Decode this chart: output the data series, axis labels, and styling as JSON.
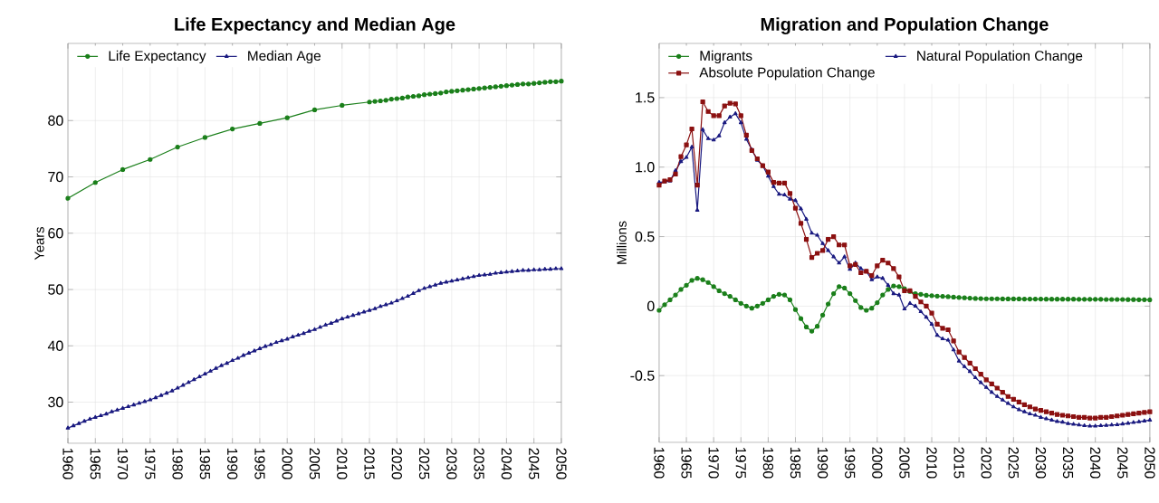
{
  "chart_data": [
    {
      "type": "line",
      "title": "Life Expectancy and Median Age",
      "ylabel": "Years",
      "x": [
        1960,
        1961,
        1962,
        1963,
        1964,
        1965,
        1966,
        1967,
        1968,
        1969,
        1970,
        1971,
        1972,
        1973,
        1974,
        1975,
        1976,
        1977,
        1978,
        1979,
        1980,
        1981,
        1982,
        1983,
        1984,
        1985,
        1986,
        1987,
        1988,
        1989,
        1990,
        1991,
        1992,
        1993,
        1994,
        1995,
        1996,
        1997,
        1998,
        1999,
        2000,
        2001,
        2002,
        2003,
        2004,
        2005,
        2006,
        2007,
        2008,
        2009,
        2010,
        2011,
        2012,
        2013,
        2014,
        2015,
        2016,
        2017,
        2018,
        2019,
        2020,
        2021,
        2022,
        2023,
        2024,
        2025,
        2026,
        2027,
        2028,
        2029,
        2030,
        2031,
        2032,
        2033,
        2034,
        2035,
        2036,
        2037,
        2038,
        2039,
        2040,
        2041,
        2042,
        2043,
        2044,
        2045,
        2046,
        2047,
        2048,
        2049,
        2050
      ],
      "xlim": [
        1960,
        2050
      ],
      "xticks": [
        1960,
        1965,
        1970,
        1975,
        1980,
        1985,
        1990,
        1995,
        2000,
        2005,
        2010,
        2015,
        2020,
        2025,
        2030,
        2035,
        2040,
        2045,
        2050
      ],
      "ylim": [
        22.7,
        93.7
      ],
      "yticks": [
        30,
        40,
        50,
        60,
        70,
        80
      ],
      "grid": true,
      "legend": "top left",
      "series": [
        {
          "name": "Life Expectancy",
          "color": "#1a7f1a",
          "marker": "circle",
          "x": [
            1960,
            1965,
            1970,
            1975,
            1980,
            1985,
            1990,
            1995,
            2000,
            2005,
            2010,
            2015,
            2016,
            2017,
            2018,
            2019,
            2020,
            2021,
            2022,
            2023,
            2024,
            2025,
            2026,
            2027,
            2028,
            2029,
            2030,
            2031,
            2032,
            2033,
            2034,
            2035,
            2036,
            2037,
            2038,
            2039,
            2040,
            2041,
            2042,
            2043,
            2044,
            2045,
            2046,
            2047,
            2048,
            2049,
            2050
          ],
          "values": [
            66.2,
            69.0,
            71.3,
            73.1,
            75.3,
            77.0,
            78.5,
            79.5,
            80.5,
            81.9,
            82.7,
            83.3,
            83.4,
            83.5,
            83.6,
            83.8,
            83.9,
            84.0,
            84.2,
            84.3,
            84.4,
            84.6,
            84.7,
            84.8,
            84.9,
            85.1,
            85.2,
            85.3,
            85.4,
            85.5,
            85.6,
            85.7,
            85.8,
            85.9,
            86.0,
            86.1,
            86.2,
            86.3,
            86.4,
            86.5,
            86.5,
            86.6,
            86.7,
            86.8,
            86.9,
            86.9,
            87.0
          ]
        },
        {
          "name": "Median Age",
          "color": "#1a1a80",
          "marker": "triangle",
          "values": [
            25.4,
            25.8,
            26.2,
            26.6,
            27.0,
            27.3,
            27.6,
            27.9,
            28.3,
            28.6,
            28.9,
            29.2,
            29.5,
            29.8,
            30.1,
            30.4,
            30.8,
            31.2,
            31.6,
            32.0,
            32.5,
            33.0,
            33.5,
            34.0,
            34.5,
            35.0,
            35.5,
            36.0,
            36.5,
            36.9,
            37.4,
            37.8,
            38.3,
            38.7,
            39.1,
            39.5,
            39.9,
            40.2,
            40.6,
            40.9,
            41.2,
            41.6,
            41.9,
            42.2,
            42.6,
            42.9,
            43.3,
            43.7,
            44.0,
            44.4,
            44.8,
            45.1,
            45.4,
            45.7,
            46.0,
            46.3,
            46.6,
            47.0,
            47.3,
            47.6,
            48.0,
            48.4,
            48.8,
            49.3,
            49.8,
            50.2,
            50.5,
            50.8,
            51.1,
            51.3,
            51.5,
            51.7,
            51.9,
            52.1,
            52.3,
            52.5,
            52.6,
            52.7,
            52.9,
            53.0,
            53.1,
            53.2,
            53.3,
            53.4,
            53.4,
            53.5,
            53.5,
            53.6,
            53.6,
            53.7,
            53.7
          ]
        }
      ]
    },
    {
      "type": "line",
      "title": "Migration and Population Change",
      "ylabel": "Millions",
      "x": [
        1960,
        1961,
        1962,
        1963,
        1964,
        1965,
        1966,
        1967,
        1968,
        1969,
        1970,
        1971,
        1972,
        1973,
        1974,
        1975,
        1976,
        1977,
        1978,
        1979,
        1980,
        1981,
        1982,
        1983,
        1984,
        1985,
        1986,
        1987,
        1988,
        1989,
        1990,
        1991,
        1992,
        1993,
        1994,
        1995,
        1996,
        1997,
        1998,
        1999,
        2000,
        2001,
        2002,
        2003,
        2004,
        2005,
        2006,
        2007,
        2008,
        2009,
        2010,
        2011,
        2012,
        2013,
        2014,
        2015,
        2016,
        2017,
        2018,
        2019,
        2020,
        2021,
        2022,
        2023,
        2024,
        2025,
        2026,
        2027,
        2028,
        2029,
        2030,
        2031,
        2032,
        2033,
        2034,
        2035,
        2036,
        2037,
        2038,
        2039,
        2040,
        2041,
        2042,
        2043,
        2044,
        2045,
        2046,
        2047,
        2048,
        2049,
        2050
      ],
      "xlim": [
        1960,
        2050
      ],
      "xticks": [
        1960,
        1965,
        1970,
        1975,
        1980,
        1985,
        1990,
        1995,
        2000,
        2005,
        2010,
        2015,
        2020,
        2025,
        2030,
        2035,
        2040,
        2045,
        2050
      ],
      "ylim": [
        -0.98,
        1.89
      ],
      "yticks": [
        -0.5,
        0,
        0.5,
        {
          "value": 1,
          "label": "1.0"
        },
        1.5
      ],
      "grid": true,
      "legend": "top left",
      "series": [
        {
          "name": "Migrants",
          "color": "#1a7f1a",
          "marker": "circle",
          "values": [
            -0.03,
            0.01,
            0.045,
            0.08,
            0.12,
            0.15,
            0.185,
            0.2,
            0.19,
            0.17,
            0.14,
            0.11,
            0.09,
            0.07,
            0.045,
            0.02,
            0,
            -0.015,
            0,
            0.02,
            0.045,
            0.07,
            0.085,
            0.08,
            0.045,
            -0.025,
            -0.09,
            -0.15,
            -0.18,
            -0.145,
            -0.065,
            0.015,
            0.09,
            0.14,
            0.13,
            0.09,
            0.04,
            -0.01,
            -0.03,
            -0.015,
            0.025,
            0.08,
            0.12,
            0.145,
            0.14,
            0.125,
            0.105,
            0.09,
            0.085,
            0.078,
            0.075,
            0.072,
            0.07,
            0.068,
            0.065,
            0.062,
            0.06,
            0.057,
            0.055,
            0.054,
            0.053,
            0.053,
            0.053,
            0.052,
            0.052,
            0.052,
            0.052,
            0.051,
            0.051,
            0.051,
            0.051,
            0.05,
            0.05,
            0.05,
            0.05,
            0.05,
            0.05,
            0.049,
            0.049,
            0.049,
            0.049,
            0.049,
            0.048,
            0.048,
            0.048,
            0.048,
            0.047,
            0.047,
            0.046,
            0.046,
            0.045
          ]
        },
        {
          "name": "Natural Population Change",
          "color": "#1a1a80",
          "marker": "triangle",
          "values": [
            0.89,
            0.895,
            0.9,
            0.975,
            1.04,
            1.07,
            1.145,
            0.69,
            1.27,
            1.205,
            1.195,
            1.225,
            1.32,
            1.36,
            1.385,
            1.32,
            1.2,
            1.125,
            1.05,
            1.01,
            0.935,
            0.86,
            0.805,
            0.8,
            0.77,
            0.76,
            0.7,
            0.625,
            0.525,
            0.51,
            0.45,
            0.4,
            0.355,
            0.31,
            0.355,
            0.265,
            0.31,
            0.27,
            0.25,
            0.19,
            0.21,
            0.2,
            0.15,
            0.09,
            0.08,
            -0.02,
            0.02,
            0,
            -0.04,
            -0.08,
            -0.13,
            -0.21,
            -0.235,
            -0.245,
            -0.315,
            -0.395,
            -0.435,
            -0.47,
            -0.515,
            -0.55,
            -0.585,
            -0.62,
            -0.65,
            -0.675,
            -0.7,
            -0.725,
            -0.745,
            -0.76,
            -0.775,
            -0.785,
            -0.8,
            -0.81,
            -0.82,
            -0.83,
            -0.835,
            -0.845,
            -0.85,
            -0.855,
            -0.86,
            -0.863,
            -0.863,
            -0.86,
            -0.858,
            -0.855,
            -0.853,
            -0.848,
            -0.843,
            -0.837,
            -0.832,
            -0.826,
            -0.82
          ]
        },
        {
          "name": "Absolute Population Change",
          "color": "#8b1010",
          "marker": "square",
          "values": [
            0.87,
            0.9,
            0.91,
            0.95,
            1.075,
            1.16,
            1.275,
            0.87,
            1.47,
            1.4,
            1.37,
            1.37,
            1.44,
            1.46,
            1.455,
            1.37,
            1.23,
            1.12,
            1.06,
            1.01,
            0.965,
            0.89,
            0.885,
            0.885,
            0.81,
            0.705,
            0.595,
            0.48,
            0.35,
            0.38,
            0.4,
            0.48,
            0.5,
            0.44,
            0.44,
            0.29,
            0.3,
            0.24,
            0.25,
            0.22,
            0.29,
            0.33,
            0.31,
            0.27,
            0.21,
            0.11,
            0.11,
            0.07,
            0.03,
            0,
            -0.05,
            -0.13,
            -0.16,
            -0.17,
            -0.25,
            -0.33,
            -0.37,
            -0.41,
            -0.45,
            -0.49,
            -0.53,
            -0.56,
            -0.59,
            -0.62,
            -0.65,
            -0.67,
            -0.69,
            -0.71,
            -0.725,
            -0.74,
            -0.75,
            -0.76,
            -0.77,
            -0.78,
            -0.785,
            -0.79,
            -0.795,
            -0.8,
            -0.8,
            -0.805,
            -0.805,
            -0.8,
            -0.8,
            -0.795,
            -0.79,
            -0.785,
            -0.78,
            -0.775,
            -0.77,
            -0.765,
            -0.76
          ]
        }
      ]
    }
  ]
}
